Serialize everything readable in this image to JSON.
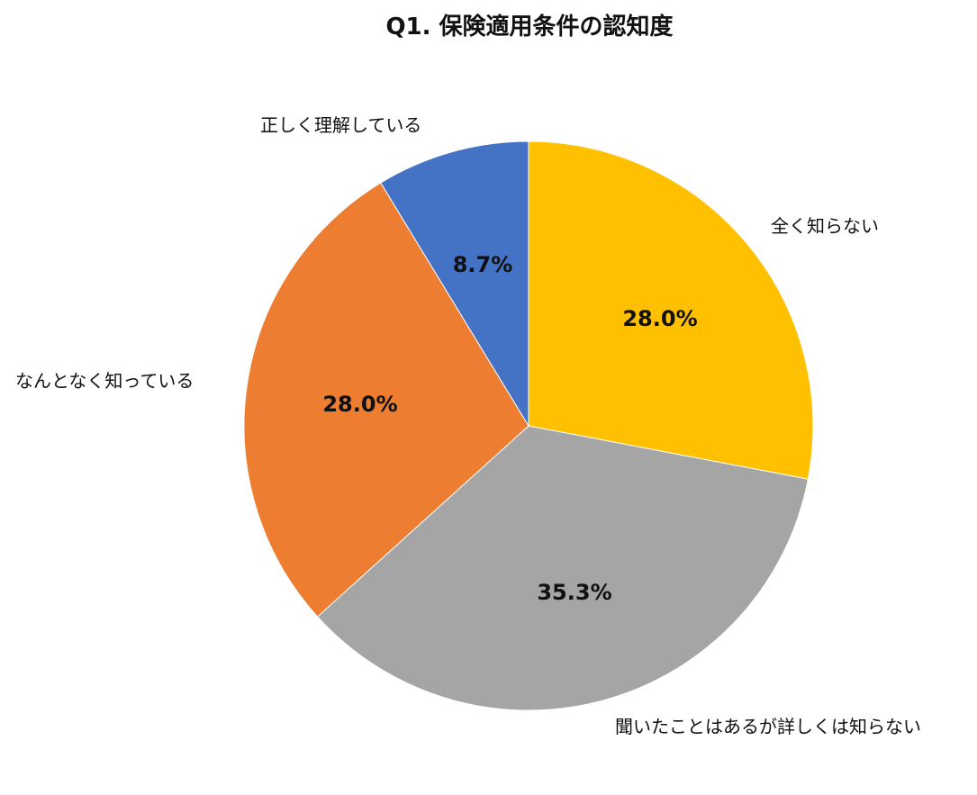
{
  "chart_data": {
    "type": "pie",
    "title": "Q1. 保険適用条件の認知度",
    "categories": [
      "全く知らない",
      "聞いたことはあるが詳しくは知らない",
      "なんとなく知っている",
      "正しく理解している"
    ],
    "values": [
      28.0,
      35.3,
      28.0,
      8.7
    ],
    "value_labels": [
      "28.0%",
      "35.3%",
      "28.0%",
      "8.7%"
    ],
    "colors": [
      "#FFC000",
      "#A5A5A5",
      "#ED7D31",
      "#4472C4"
    ],
    "start_angle": "12 o'clock",
    "direction": "clockwise",
    "legend": "none (category labels placed outside slices)"
  }
}
